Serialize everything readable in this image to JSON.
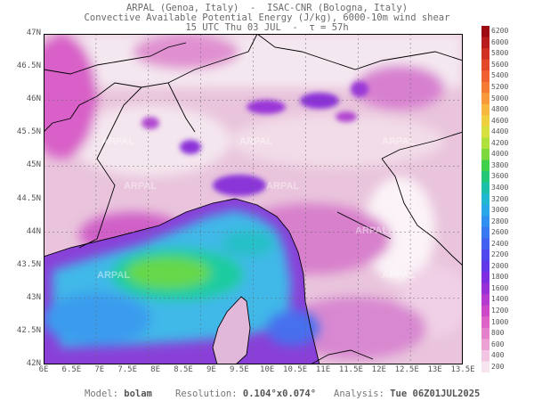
{
  "header": {
    "line1": "ARPAL (Genoa, Italy)  -  ISAC-CNR (Bologna, Italy)",
    "line2": "Convective Available Potential Energy (J/kg), 6000-10m wind shear",
    "line3": "15 UTC Thu 03 JUL  -  τ = 57h"
  },
  "map": {
    "lat_labels": [
      "47N",
      "46.5N",
      "46N",
      "45.5N",
      "45N",
      "44.5N",
      "44N",
      "43.5N",
      "43N",
      "42.5N",
      "42N"
    ],
    "lon_labels": [
      "6E",
      "6.5E",
      "7E",
      "7.5E",
      "8E",
      "8.5E",
      "9E",
      "9.5E",
      "10E",
      "10.5E",
      "11E",
      "11.5E",
      "12E",
      "12.5E",
      "13E",
      "13.5E"
    ],
    "watermark": "ARPAL"
  },
  "colorbar": {
    "levels": [
      "6200",
      "6000",
      "5800",
      "5600",
      "5400",
      "5200",
      "5000",
      "4800",
      "4600",
      "4400",
      "4200",
      "4000",
      "3800",
      "3600",
      "3400",
      "3200",
      "3000",
      "2800",
      "2600",
      "2400",
      "2200",
      "2000",
      "1800",
      "1600",
      "1400",
      "1200",
      "1000",
      "800",
      "600",
      "400",
      "200"
    ],
    "colors": [
      "#9e0a14",
      "#b81c1c",
      "#d03022",
      "#e4482a",
      "#f06030",
      "#f57a34",
      "#f89a3a",
      "#f8b840",
      "#eed040",
      "#d8e040",
      "#b0e03c",
      "#7cd83c",
      "#40d04a",
      "#22c878",
      "#1cc0a8",
      "#20b8d0",
      "#28a8e8",
      "#3090f0",
      "#3878f0",
      "#4460f0",
      "#5048ee",
      "#6038e8",
      "#7c2ee0",
      "#9830d8",
      "#b43ad0",
      "#cc48c8",
      "#dc62c8",
      "#e480cc",
      "#eca0d4",
      "#f2c6e2",
      "#f6e4ee"
    ]
  },
  "footer": {
    "model_label": "Model:",
    "model_value": "bolam",
    "resolution_label": "Resolution:",
    "resolution_value": "0.104°x0.074°",
    "analysis_label": "Analysis:",
    "analysis_value": "Tue 06Z01JUL2025"
  }
}
